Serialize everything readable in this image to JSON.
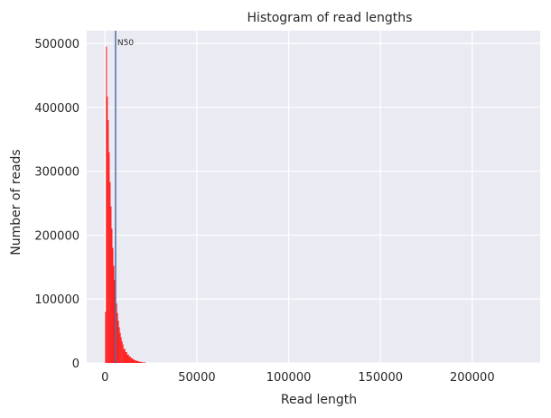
{
  "chart_data": {
    "type": "bar",
    "title": "Histogram of read lengths",
    "xlabel": "Read length",
    "ylabel": "Number of reads",
    "xlim": [
      -10000,
      237000
    ],
    "ylim": [
      0,
      520000
    ],
    "xticks": [
      0,
      50000,
      100000,
      150000,
      200000
    ],
    "yticks": [
      0,
      100000,
      200000,
      300000,
      400000,
      500000
    ],
    "xtick_labels": [
      "0",
      "50000",
      "100000",
      "150000",
      "200000"
    ],
    "ytick_labels": [
      "0",
      "100000",
      "200000",
      "300000",
      "400000",
      "500000"
    ],
    "grid": true,
    "background": "#EAEAF2",
    "bar_color": "#FF1A1A",
    "n50_color": "#4C72B0",
    "series": [
      {
        "bin_edges": [
          0,
          500,
          1000,
          1500,
          2000,
          2500,
          3000,
          3500,
          4000,
          4500,
          5000,
          5500,
          6000,
          6500,
          7000,
          7500,
          8000,
          8500,
          9000,
          9500,
          10000,
          11000,
          12000,
          13000,
          14000,
          15000,
          16000,
          17000,
          18000,
          19000,
          20000,
          22000
        ],
        "values": [
          80000,
          495000,
          417000,
          380000,
          330000,
          283000,
          245000,
          210000,
          180000,
          152000,
          130000,
          110000,
          93000,
          78000,
          66000,
          56000,
          47000,
          40000,
          34000,
          29000,
          22000,
          17000,
          13000,
          10000,
          7500,
          5500,
          4000,
          3000,
          2200,
          1500,
          800
        ]
      }
    ],
    "annotations": [
      {
        "type": "vline",
        "x": 5700,
        "text": "N50"
      }
    ]
  }
}
